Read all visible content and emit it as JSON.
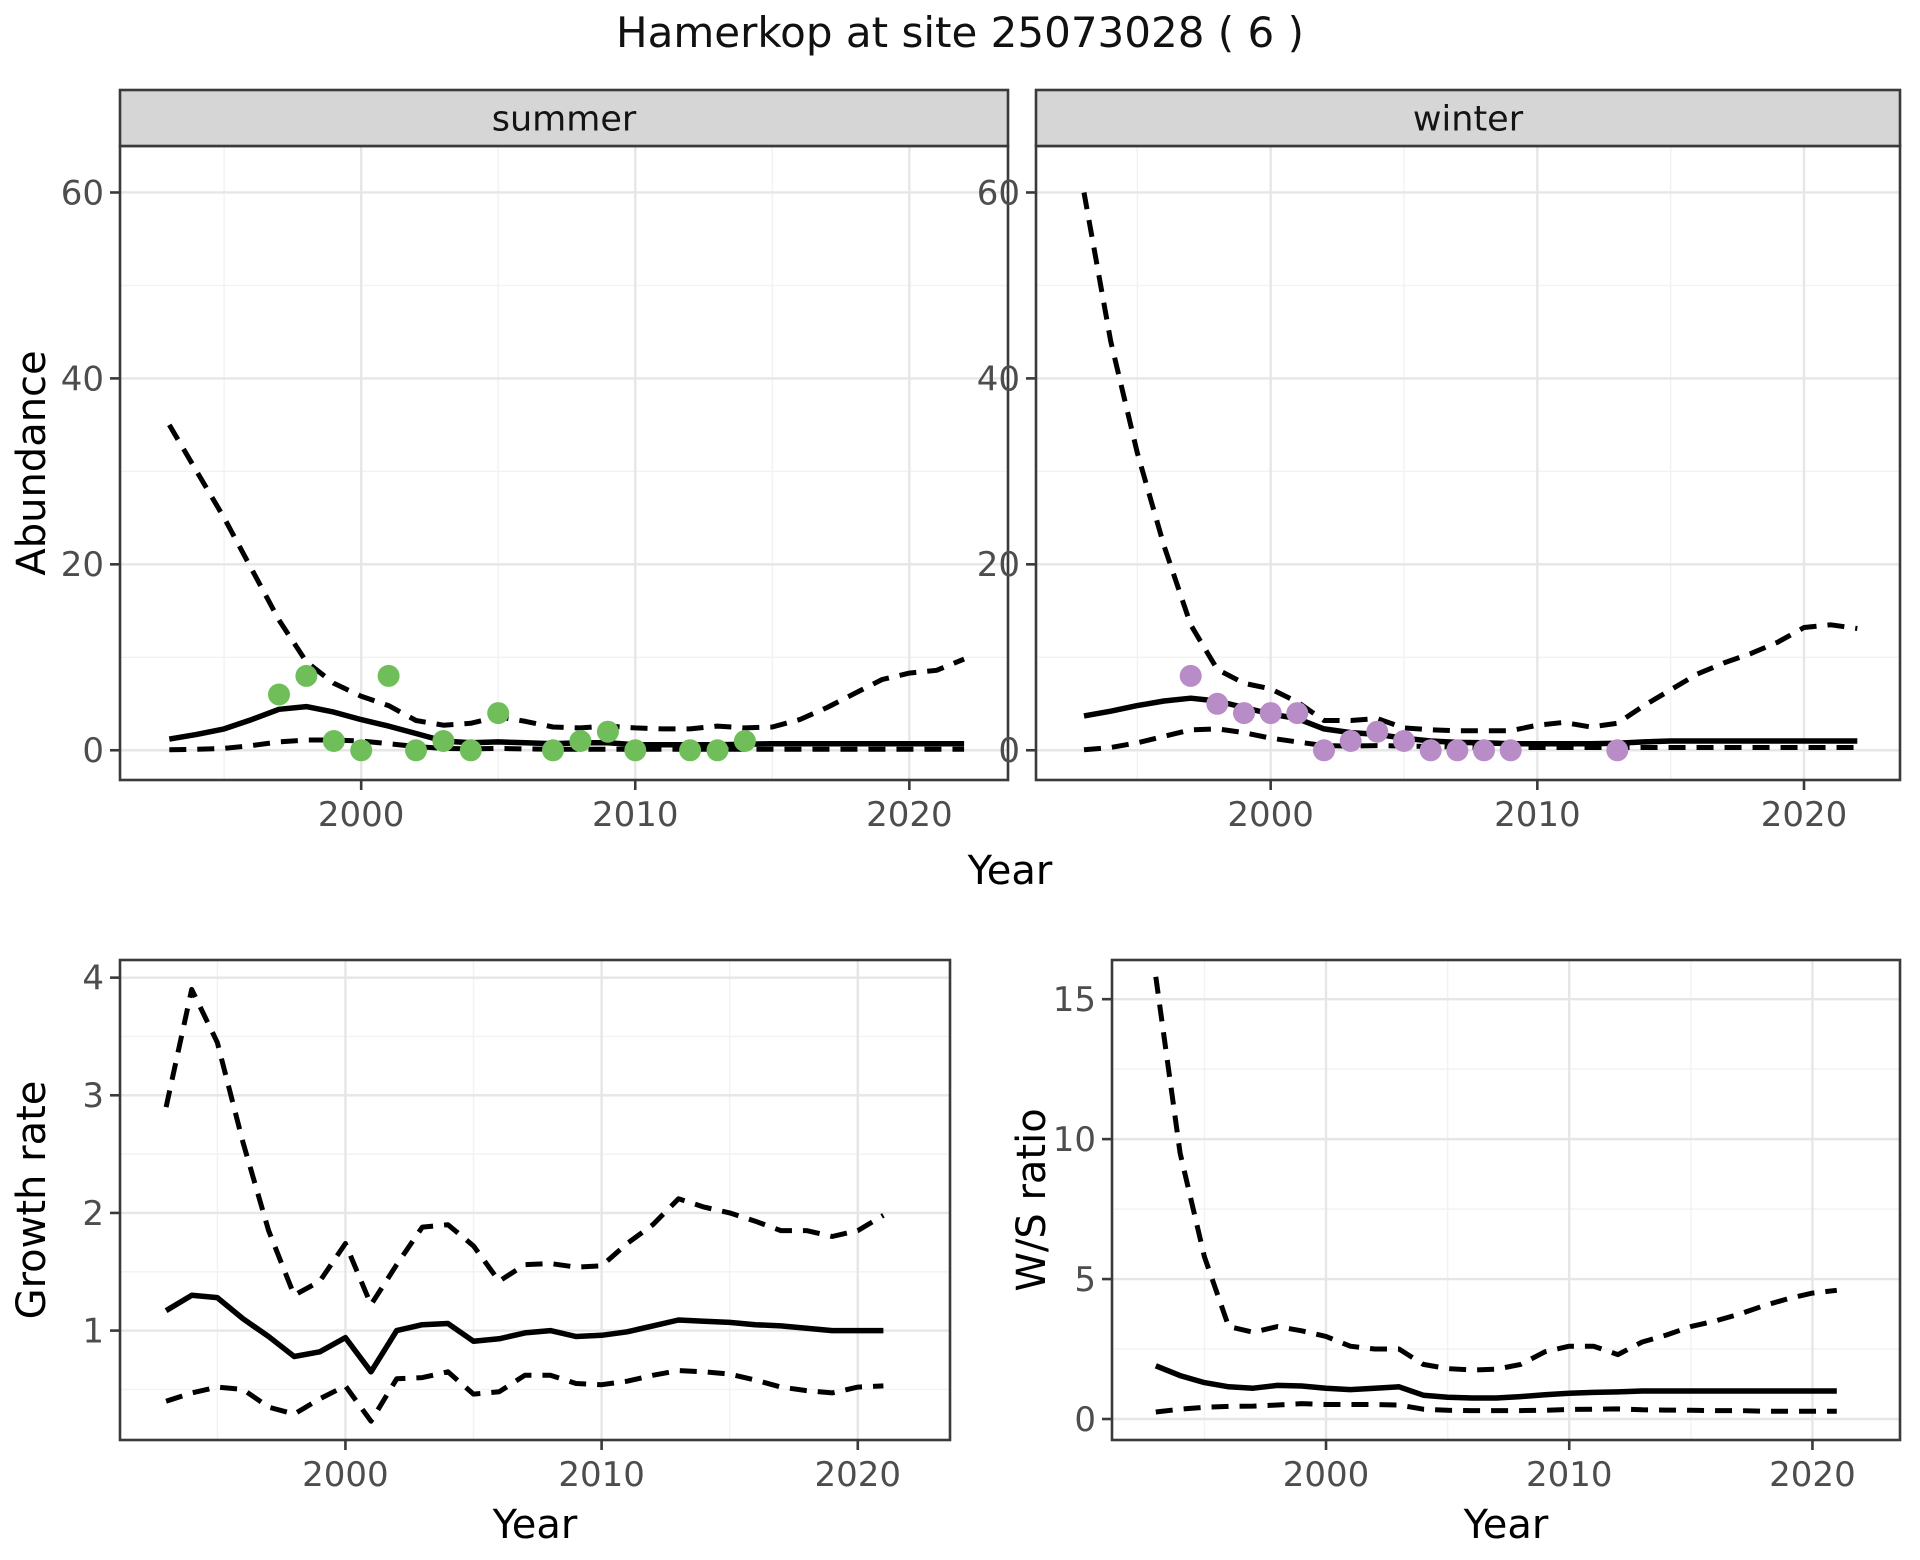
{
  "title": "Hamerkop at site 25073028 ( 6 )",
  "axis_titles": {
    "x": "Year",
    "y_abundance": "Abundance",
    "y_growth": "Growth rate",
    "y_ws": "W/S ratio"
  },
  "colors": {
    "summer_point": "#70be5a",
    "winter_point": "#b88cc6",
    "line": "#000000",
    "axis_text": "#4d4d4d",
    "strip_fill": "#d6d6d6",
    "strip_text": "#141414",
    "grid_major": "#e6e6e6",
    "grid_minor": "#f2f2f2",
    "panel_border": "#3a3a3a",
    "background": "#ffffff"
  },
  "chart_data": [
    {
      "type": "line",
      "panel": "summer",
      "facet_label": "summer",
      "xlabel": "Year",
      "ylabel": "Abundance",
      "xlim": [
        1991.2,
        2023.6
      ],
      "ylim": [
        -3.2,
        65
      ],
      "xticks": [
        2000,
        2010,
        2020
      ],
      "xticks_minor": [
        1995,
        2005,
        2015
      ],
      "yticks": [
        0,
        20,
        40,
        60
      ],
      "yticks_minor": [
        10,
        30,
        50
      ],
      "grid": true,
      "series": [
        {
          "name": "fitted-abundance",
          "style": "solid",
          "x": [
            1993,
            1994,
            1995,
            1996,
            1997,
            1998,
            1999,
            2000,
            2001,
            2002,
            2003,
            2004,
            2005,
            2006,
            2007,
            2008,
            2009,
            2010,
            2011,
            2012,
            2013,
            2014,
            2015,
            2016,
            2017,
            2018,
            2019,
            2020,
            2021,
            2022
          ],
          "y": [
            1.2,
            1.7,
            2.3,
            3.3,
            4.4,
            4.7,
            4.1,
            3.3,
            2.6,
            1.8,
            1.0,
            0.8,
            0.9,
            0.8,
            0.7,
            0.8,
            0.8,
            0.6,
            0.6,
            0.6,
            0.6,
            0.65,
            0.7,
            0.7,
            0.7,
            0.7,
            0.7,
            0.7,
            0.7,
            0.7
          ]
        },
        {
          "name": "upper-95ci",
          "style": "dashed",
          "x": [
            1993,
            1994,
            1995,
            1996,
            1997,
            1998,
            1999,
            2000,
            2001,
            2002,
            2003,
            2004,
            2005,
            2006,
            2007,
            2008,
            2009,
            2010,
            2011,
            2012,
            2013,
            2014,
            2015,
            2016,
            2017,
            2018,
            2019,
            2020,
            2021,
            2022
          ],
          "y": [
            35,
            30,
            25,
            19.5,
            14,
            9.5,
            7.2,
            5.8,
            4.8,
            3.2,
            2.7,
            2.9,
            3.6,
            3.1,
            2.5,
            2.4,
            2.6,
            2.4,
            2.3,
            2.3,
            2.6,
            2.4,
            2.5,
            3.3,
            4.6,
            6.1,
            7.6,
            8.3,
            8.6,
            9.8
          ]
        },
        {
          "name": "lower-95ci",
          "style": "dashed",
          "x": [
            1993,
            1994,
            1995,
            1996,
            1997,
            1998,
            1999,
            2000,
            2001,
            2002,
            2003,
            2004,
            2005,
            2006,
            2007,
            2008,
            2009,
            2010,
            2011,
            2012,
            2013,
            2014,
            2015,
            2016,
            2017,
            2018,
            2019,
            2020,
            2021,
            2022
          ],
          "y": [
            0.05,
            0.1,
            0.2,
            0.5,
            0.9,
            1.1,
            1.1,
            1.0,
            0.7,
            0.4,
            0.2,
            0.15,
            0.2,
            0.15,
            0.1,
            0.1,
            0.1,
            0.1,
            0.1,
            0.1,
            0.1,
            0.1,
            0.1,
            0.1,
            0.1,
            0.1,
            0.1,
            0.1,
            0.1,
            0.1
          ]
        }
      ],
      "points": {
        "name": "observed-summer-counts",
        "color_key": "summer_point",
        "xy": [
          [
            1997,
            6
          ],
          [
            1998,
            8
          ],
          [
            1999,
            1
          ],
          [
            2000,
            0
          ],
          [
            2001,
            8
          ],
          [
            2002,
            0
          ],
          [
            2003,
            1
          ],
          [
            2004,
            0
          ],
          [
            2005,
            4
          ],
          [
            2007,
            0
          ],
          [
            2008,
            1
          ],
          [
            2009,
            2
          ],
          [
            2010,
            0
          ],
          [
            2012,
            0
          ],
          [
            2013,
            0
          ],
          [
            2014,
            1
          ]
        ]
      }
    },
    {
      "type": "line",
      "panel": "winter",
      "facet_label": "winter",
      "xlabel": "Year",
      "ylabel": "Abundance",
      "xlim": [
        1991.2,
        2023.6
      ],
      "ylim": [
        -3.2,
        65
      ],
      "xticks": [
        2000,
        2010,
        2020
      ],
      "xticks_minor": [
        1995,
        2005,
        2015
      ],
      "yticks": [
        0,
        20,
        40,
        60
      ],
      "yticks_minor": [
        10,
        30,
        50
      ],
      "grid": true,
      "series": [
        {
          "name": "fitted-abundance",
          "style": "solid",
          "x": [
            1993,
            1994,
            1995,
            1996,
            1997,
            1998,
            1999,
            2000,
            2001,
            2002,
            2003,
            2004,
            2005,
            2006,
            2007,
            2008,
            2009,
            2010,
            2011,
            2012,
            2013,
            2014,
            2015,
            2016,
            2017,
            2018,
            2019,
            2020,
            2021,
            2022
          ],
          "y": [
            3.7,
            4.2,
            4.8,
            5.3,
            5.6,
            5.3,
            4.6,
            3.9,
            3.4,
            2.3,
            1.9,
            1.7,
            1.3,
            1.0,
            0.85,
            0.8,
            0.7,
            0.7,
            0.7,
            0.7,
            0.75,
            0.9,
            1.0,
            1.0,
            1.0,
            1.0,
            1.0,
            1.0,
            1.0,
            1.0
          ]
        },
        {
          "name": "upper-95ci",
          "style": "dashed",
          "x": [
            1993,
            1994,
            1995,
            1996,
            1997,
            1998,
            1999,
            2000,
            2001,
            2002,
            2003,
            2004,
            2005,
            2006,
            2007,
            2008,
            2009,
            2010,
            2011,
            2012,
            2013,
            2014,
            2015,
            2016,
            2017,
            2018,
            2019,
            2020,
            2021,
            2022
          ],
          "y": [
            60,
            44,
            32,
            22,
            13.5,
            8.7,
            7.2,
            6.6,
            5.2,
            3.2,
            3.2,
            3.4,
            2.4,
            2.2,
            2.1,
            2.1,
            2.1,
            2.7,
            3.0,
            2.5,
            2.9,
            4.8,
            6.5,
            8.2,
            9.4,
            10.4,
            11.6,
            13.2,
            13.5,
            13.1
          ]
        },
        {
          "name": "lower-95ci",
          "style": "dashed",
          "x": [
            1993,
            1994,
            1995,
            1996,
            1997,
            1998,
            1999,
            2000,
            2001,
            2002,
            2003,
            2004,
            2005,
            2006,
            2007,
            2008,
            2009,
            2010,
            2011,
            2012,
            2013,
            2014,
            2015,
            2016,
            2017,
            2018,
            2019,
            2020,
            2021,
            2022
          ],
          "y": [
            0.05,
            0.3,
            0.8,
            1.5,
            2.2,
            2.3,
            1.9,
            1.3,
            0.9,
            0.5,
            0.45,
            0.5,
            0.45,
            0.4,
            0.35,
            0.3,
            0.3,
            0.3,
            0.3,
            0.3,
            0.3,
            0.3,
            0.3,
            0.3,
            0.3,
            0.3,
            0.3,
            0.3,
            0.3,
            0.3
          ]
        }
      ],
      "points": {
        "name": "observed-winter-counts",
        "color_key": "winter_point",
        "xy": [
          [
            1997,
            8
          ],
          [
            1998,
            5
          ],
          [
            1999,
            4
          ],
          [
            2000,
            4
          ],
          [
            2001,
            4
          ],
          [
            2002,
            0
          ],
          [
            2003,
            1
          ],
          [
            2004,
            2
          ],
          [
            2005,
            1
          ],
          [
            2006,
            0
          ],
          [
            2007,
            0
          ],
          [
            2008,
            0
          ],
          [
            2009,
            0
          ],
          [
            2013,
            0
          ]
        ]
      }
    },
    {
      "type": "line",
      "panel": "growth",
      "facet_label": null,
      "xlabel": "Year",
      "ylabel": "Growth rate",
      "xlim": [
        1991.2,
        2023.6
      ],
      "ylim": [
        0.07,
        4.15
      ],
      "xticks": [
        2000,
        2010,
        2020
      ],
      "xticks_minor": [
        1995,
        2005,
        2015
      ],
      "yticks": [
        1,
        2,
        3,
        4
      ],
      "yticks_minor": [
        0.5,
        1.5,
        2.5,
        3.5
      ],
      "grid": true,
      "series": [
        {
          "name": "fitted-growth-rate",
          "style": "solid",
          "x": [
            1993,
            1994,
            1995,
            1996,
            1997,
            1998,
            1999,
            2000,
            2001,
            2002,
            2003,
            2004,
            2005,
            2006,
            2007,
            2008,
            2009,
            2010,
            2011,
            2012,
            2013,
            2014,
            2015,
            2016,
            2017,
            2018,
            2019,
            2020,
            2021
          ],
          "y": [
            1.17,
            1.3,
            1.28,
            1.1,
            0.95,
            0.78,
            0.82,
            0.94,
            0.65,
            1.0,
            1.05,
            1.06,
            0.91,
            0.93,
            0.98,
            1.0,
            0.95,
            0.96,
            0.99,
            1.04,
            1.09,
            1.08,
            1.07,
            1.05,
            1.04,
            1.02,
            1.0,
            1.0,
            1.0
          ]
        },
        {
          "name": "upper-95ci",
          "style": "dashed",
          "x": [
            1993,
            1994,
            1995,
            1996,
            1997,
            1998,
            1999,
            2000,
            2001,
            2002,
            2003,
            2004,
            2005,
            2006,
            2007,
            2008,
            2009,
            2010,
            2011,
            2012,
            2013,
            2014,
            2015,
            2016,
            2017,
            2018,
            2019,
            2020,
            2021
          ],
          "y": [
            2.9,
            3.9,
            3.45,
            2.6,
            1.85,
            1.3,
            1.42,
            1.74,
            1.22,
            1.56,
            1.88,
            1.9,
            1.72,
            1.42,
            1.56,
            1.57,
            1.54,
            1.55,
            1.74,
            1.9,
            2.12,
            2.05,
            2.0,
            1.93,
            1.85,
            1.85,
            1.8,
            1.85,
            1.98
          ]
        },
        {
          "name": "lower-95ci",
          "style": "dashed",
          "x": [
            1993,
            1994,
            1995,
            1996,
            1997,
            1998,
            1999,
            2000,
            2001,
            2002,
            2003,
            2004,
            2005,
            2006,
            2007,
            2008,
            2009,
            2010,
            2011,
            2012,
            2013,
            2014,
            2015,
            2016,
            2017,
            2018,
            2019,
            2020,
            2021
          ],
          "y": [
            0.4,
            0.47,
            0.52,
            0.5,
            0.35,
            0.29,
            0.42,
            0.53,
            0.23,
            0.59,
            0.6,
            0.65,
            0.46,
            0.48,
            0.62,
            0.62,
            0.55,
            0.54,
            0.57,
            0.62,
            0.66,
            0.65,
            0.63,
            0.58,
            0.52,
            0.49,
            0.47,
            0.52,
            0.53
          ]
        }
      ],
      "points": null
    },
    {
      "type": "line",
      "panel": "ws",
      "facet_label": null,
      "xlabel": "Year",
      "ylabel": "W/S ratio",
      "xlim": [
        1991.2,
        2023.6
      ],
      "ylim": [
        -0.75,
        16.4
      ],
      "xticks": [
        2000,
        2010,
        2020
      ],
      "xticks_minor": [
        1995,
        2005,
        2015
      ],
      "yticks": [
        0,
        5,
        10,
        15
      ],
      "yticks_minor": [
        2.5,
        7.5,
        12.5
      ],
      "grid": true,
      "series": [
        {
          "name": "fitted-ws-ratio",
          "style": "solid",
          "x": [
            1993,
            1994,
            1995,
            1996,
            1997,
            1998,
            1999,
            2000,
            2001,
            2002,
            2003,
            2004,
            2005,
            2006,
            2007,
            2008,
            2009,
            2010,
            2011,
            2012,
            2013,
            2014,
            2015,
            2016,
            2017,
            2018,
            2019,
            2020,
            2021
          ],
          "y": [
            1.9,
            1.55,
            1.3,
            1.15,
            1.1,
            1.2,
            1.18,
            1.1,
            1.05,
            1.1,
            1.15,
            0.85,
            0.78,
            0.75,
            0.75,
            0.8,
            0.87,
            0.92,
            0.95,
            0.97,
            1.0,
            1.0,
            1.0,
            1.0,
            1.0,
            1.0,
            1.0,
            1.0,
            1.0
          ]
        },
        {
          "name": "upper-95ci",
          "style": "dashed",
          "x": [
            1993,
            1994,
            1995,
            1996,
            1997,
            1998,
            1999,
            2000,
            2001,
            2002,
            2003,
            2004,
            2005,
            2006,
            2007,
            2008,
            2009,
            2010,
            2011,
            2012,
            2013,
            2014,
            2015,
            2016,
            2017,
            2018,
            2019,
            2020,
            2021
          ],
          "y": [
            15.8,
            9.5,
            5.8,
            3.3,
            3.1,
            3.3,
            3.15,
            2.95,
            2.6,
            2.5,
            2.5,
            1.95,
            1.8,
            1.75,
            1.78,
            1.95,
            2.4,
            2.6,
            2.6,
            2.3,
            2.75,
            3.0,
            3.3,
            3.5,
            3.75,
            4.05,
            4.3,
            4.5,
            4.6
          ]
        },
        {
          "name": "lower-95ci",
          "style": "dashed",
          "x": [
            1993,
            1994,
            1995,
            1996,
            1997,
            1998,
            1999,
            2000,
            2001,
            2002,
            2003,
            2004,
            2005,
            2006,
            2007,
            2008,
            2009,
            2010,
            2011,
            2012,
            2013,
            2014,
            2015,
            2016,
            2017,
            2018,
            2019,
            2020,
            2021
          ],
          "y": [
            0.25,
            0.35,
            0.42,
            0.45,
            0.46,
            0.5,
            0.55,
            0.52,
            0.52,
            0.52,
            0.5,
            0.35,
            0.31,
            0.3,
            0.3,
            0.3,
            0.31,
            0.34,
            0.35,
            0.36,
            0.33,
            0.32,
            0.31,
            0.3,
            0.3,
            0.28,
            0.28,
            0.28,
            0.28
          ]
        }
      ],
      "points": null
    }
  ]
}
